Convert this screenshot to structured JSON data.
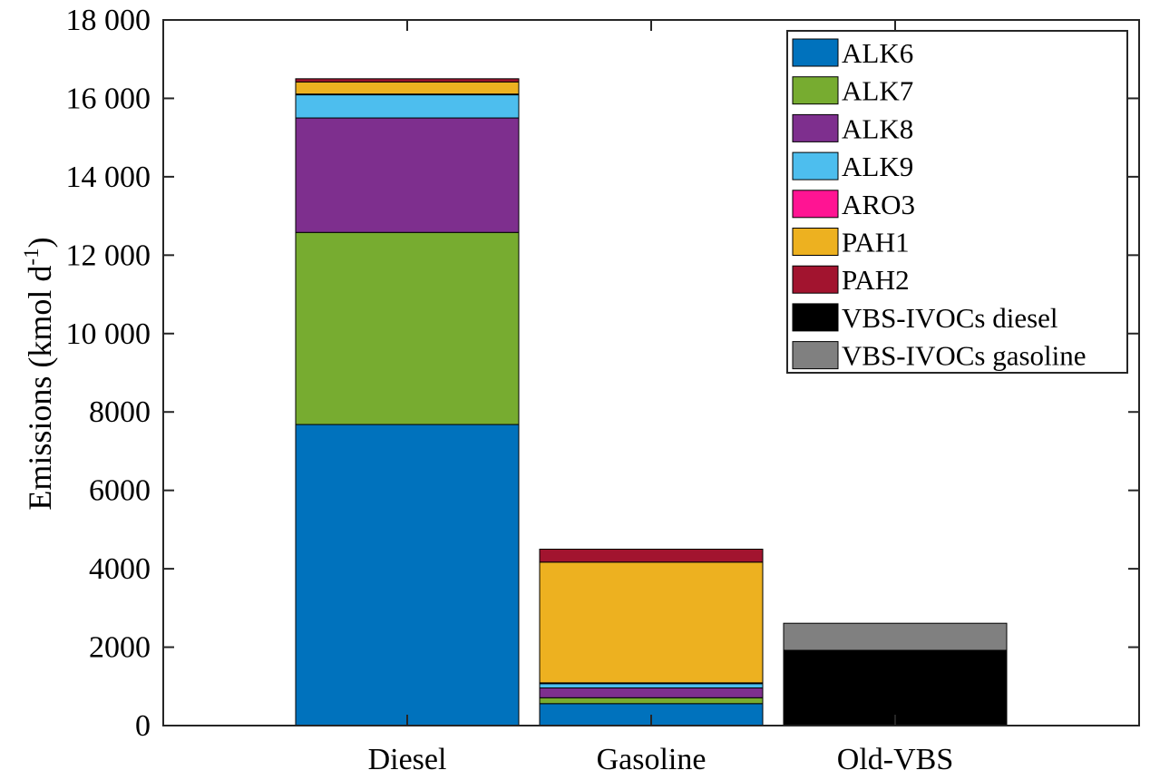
{
  "chart_data": {
    "type": "bar",
    "stacked": true,
    "categories": [
      "Diesel",
      "Gasoline",
      "Old-VBS"
    ],
    "ylabel": "Emissions (kmol d",
    "ylabel_superscript": "-1",
    "ylabel_suffix": ")",
    "xlabel": "",
    "title": "",
    "ylim": [
      0,
      18000
    ],
    "yticks": [
      0,
      2000,
      4000,
      6000,
      8000,
      10000,
      12000,
      14000,
      16000,
      18000
    ],
    "ytick_labels": [
      "0",
      "2000",
      "4000",
      "6000",
      "8000",
      "10 000",
      "12 000",
      "14 000",
      "16 000",
      "18 000"
    ],
    "grid": false,
    "legend_position": "top-right",
    "series": [
      {
        "name": "ALK6",
        "color": "#0072BD",
        "values": [
          7680,
          560,
          0
        ]
      },
      {
        "name": "ALK7",
        "color": "#77AC30",
        "values": [
          4900,
          150,
          0
        ]
      },
      {
        "name": "ALK8",
        "color": "#7E2F8E",
        "values": [
          2920,
          250,
          0
        ]
      },
      {
        "name": "ALK9",
        "color": "#4DBEEE",
        "values": [
          590,
          110,
          0
        ]
      },
      {
        "name": "ARO3",
        "color": "#FF1493",
        "values": [
          20,
          20,
          0
        ]
      },
      {
        "name": "PAH1",
        "color": "#EDB120",
        "values": [
          310,
          3080,
          0
        ]
      },
      {
        "name": "PAH2",
        "color": "#A2142F",
        "values": [
          80,
          330,
          0
        ]
      },
      {
        "name": "VBS-IVOCs diesel",
        "color": "#000000",
        "values": [
          0,
          0,
          1920
        ]
      },
      {
        "name": "VBS-IVOCs gasoline",
        "color": "#808080",
        "values": [
          0,
          0,
          690
        ]
      }
    ]
  }
}
